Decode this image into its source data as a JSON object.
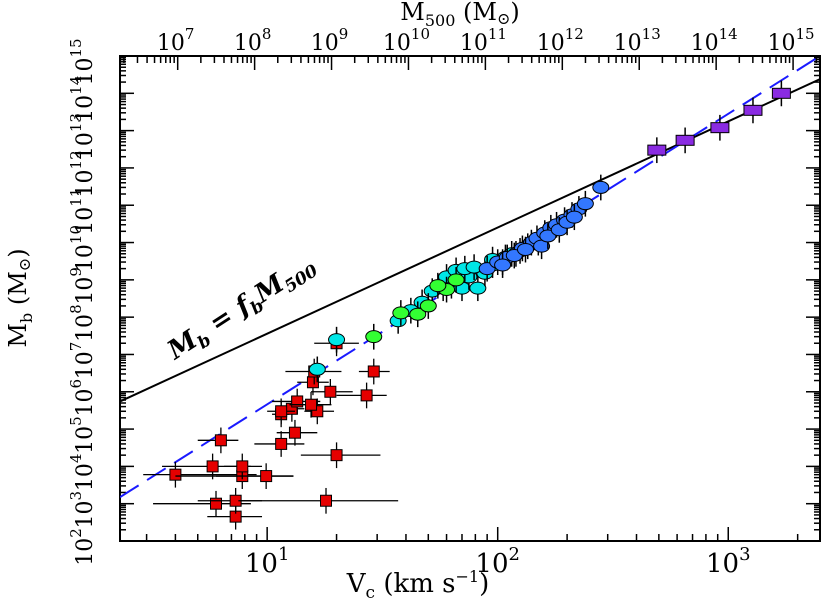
{
  "chart_data": {
    "type": "scatter",
    "title": "",
    "xlabel": "V c  (km  s⁻¹)",
    "ylabel": "M b (M⊙)",
    "top_xlabel": "M500  (M⊙)",
    "xscale": "log",
    "yscale": "log",
    "xlim": [
      2.3,
      2500
    ],
    "ylim": [
      100,
      1000000000000000.0
    ],
    "top_axis_range_log10": [
      6.25,
      15.35
    ],
    "x_ticks": [
      {
        "value": 10,
        "label": "10",
        "exp": "1"
      },
      {
        "value": 100,
        "label": "10",
        "exp": "2"
      },
      {
        "value": 1000,
        "label": "10",
        "exp": "3"
      }
    ],
    "y_ticks": [
      {
        "value": 100.0,
        "label": "10",
        "exp": "2"
      },
      {
        "value": 1000.0,
        "label": "10",
        "exp": "3"
      },
      {
        "value": 10000.0,
        "label": "10",
        "exp": "4"
      },
      {
        "value": 100000.0,
        "label": "10",
        "exp": "5"
      },
      {
        "value": 1000000.0,
        "label": "10",
        "exp": "6"
      },
      {
        "value": 10000000.0,
        "label": "10",
        "exp": "7"
      },
      {
        "value": 100000000.0,
        "label": "10",
        "exp": "8"
      },
      {
        "value": 1000000000.0,
        "label": "10",
        "exp": "9"
      },
      {
        "value": 10000000000.0,
        "label": "10",
        "exp": "10"
      },
      {
        "value": 100000000000.0,
        "label": "10",
        "exp": "11"
      },
      {
        "value": 1000000000000.0,
        "label": "10",
        "exp": "12"
      },
      {
        "value": 10000000000000.0,
        "label": "10",
        "exp": "13"
      },
      {
        "value": 100000000000000.0,
        "label": "10",
        "exp": "14"
      },
      {
        "value": 1000000000000000.0,
        "label": "10",
        "exp": "15"
      }
    ],
    "top_ticks": [
      {
        "value": 7,
        "label": "10",
        "exp": "7"
      },
      {
        "value": 8,
        "label": "10",
        "exp": "8"
      },
      {
        "value": 9,
        "label": "10",
        "exp": "9"
      },
      {
        "value": 10,
        "label": "10",
        "exp": "10"
      },
      {
        "value": 11,
        "label": "10",
        "exp": "11"
      },
      {
        "value": 12,
        "label": "10",
        "exp": "12"
      },
      {
        "value": 13,
        "label": "10",
        "exp": "13"
      },
      {
        "value": 14,
        "label": "10",
        "exp": "14"
      },
      {
        "value": 15,
        "label": "10",
        "exp": "15"
      }
    ],
    "annotation": "Mb = fb M500",
    "lines": [
      {
        "name": "Mb = fb M500",
        "style": "solid",
        "color": "#000000",
        "points": [
          [
            2.3,
            550000.0
          ],
          [
            2500,
            240000000000000.0
          ]
        ]
      },
      {
        "name": "",
        "style": "dashed",
        "color": "#1a1aff",
        "points": [
          [
            2.3,
            1500.0
          ],
          [
            2500,
            1000000000000000.0
          ]
        ]
      }
    ],
    "series": [
      {
        "name": "",
        "marker": "square",
        "color": "#e60000",
        "points": [
          [
            7.3,
            450.0,
            5.5,
            9.5
          ],
          [
            6.0,
            1000.0,
            3.2,
            8.5
          ],
          [
            7.3,
            1200.0,
            5.0,
            9.5
          ],
          [
            18.0,
            1200.0,
            7.5,
            37.0
          ],
          [
            4.0,
            6000.0,
            2.9,
            9.0
          ],
          [
            7.8,
            5500.0,
            4.0,
            13.0
          ],
          [
            9.9,
            5500.0,
            6.0,
            13.0
          ],
          [
            5.8,
            10000.0,
            3.5,
            8.5
          ],
          [
            7.8,
            10000.0,
            6.5,
            9.5
          ],
          [
            20.0,
            20000.0,
            14.0,
            31.0
          ],
          [
            6.3,
            50000.0,
            5.0,
            7.5
          ],
          [
            11.5,
            40000.0,
            8.8,
            14.5
          ],
          [
            13.2,
            80000.0,
            11.0,
            16.5
          ],
          [
            11.5,
            250000.0,
            10.5,
            12.5
          ],
          [
            12.8,
            350000.0,
            11.5,
            14.5
          ],
          [
            16.5,
            300000.0,
            14.5,
            19.5
          ],
          [
            11.5,
            300000.0,
            10.0,
            13.2
          ],
          [
            13.5,
            550000.0,
            10.5,
            17.0
          ],
          [
            15.5,
            450000.0,
            12.5,
            19.0
          ],
          [
            27.0,
            800000.0,
            20.0,
            33.0
          ],
          [
            18.8,
            1000000.0,
            15.5,
            23.5
          ],
          [
            15.8,
            1800000.0,
            13.5,
            18.5
          ],
          [
            16.0,
            3500000.0,
            12.0,
            21.0
          ],
          [
            29.0,
            3500000.0,
            25.0,
            34.0
          ],
          [
            20.0,
            20000000.0,
            16.0,
            25.0
          ]
        ]
      },
      {
        "name": "",
        "marker": "circle",
        "color": "#00e6e6",
        "points": [
          [
            20.0,
            25000000.0
          ],
          [
            16.5,
            4000000.0
          ],
          [
            37.0,
            80000000.0
          ],
          [
            42.0,
            150000000.0
          ],
          [
            47.0,
            250000000.0
          ],
          [
            52.0,
            500000000.0
          ],
          [
            58.0,
            600000000.0
          ],
          [
            63.0,
            700000000.0
          ],
          [
            70.0,
            600000000.0
          ],
          [
            82.0,
            600000000.0
          ],
          [
            75.0,
            1200000000.0
          ],
          [
            88.0,
            1500000000.0
          ],
          [
            60.0,
            1200000000.0
          ],
          [
            66.0,
            1800000000.0
          ],
          [
            72.0,
            2000000000.0
          ],
          [
            79.0,
            2200000000.0
          ],
          [
            95.0,
            2500000000.0
          ],
          [
            105.0,
            3000000000.0
          ],
          [
            115.0,
            5000000000.0
          ],
          [
            125.0,
            6000000000.0
          ],
          [
            135.0,
            8000000000.0
          ],
          [
            150.0,
            10000000000.0
          ],
          [
            108.0,
            4000000000.0
          ],
          [
            95.0,
            3500000000.0
          ]
        ]
      },
      {
        "name": "",
        "marker": "circle",
        "color": "#33ff33",
        "points": [
          [
            29.0,
            30000000.0
          ],
          [
            38.0,
            130000000.0
          ],
          [
            45.0,
            120000000.0
          ],
          [
            50.0,
            200000000.0
          ],
          [
            60.0,
            550000000.0
          ],
          [
            66.0,
            1000000000.0
          ],
          [
            55.0,
            700000000.0
          ]
        ]
      },
      {
        "name": "",
        "marker": "circle",
        "color": "#3377ff",
        "points": [
          [
            90.0,
            2000000000.0
          ],
          [
            100.0,
            3000000000.0
          ],
          [
            110.0,
            4000000000.0
          ],
          [
            120.0,
            5000000000.0
          ],
          [
            128.0,
            7000000000.0
          ],
          [
            140.0,
            10000000000.0
          ],
          [
            148.0,
            13000000000.0
          ],
          [
            160.0,
            18000000000.0
          ],
          [
            170.0,
            25000000000.0
          ],
          [
            180.0,
            30000000000.0
          ],
          [
            195.0,
            40000000000.0
          ],
          [
            210.0,
            55000000000.0
          ],
          [
            225.0,
            80000000000.0
          ],
          [
            240.0,
            110000000000.0
          ],
          [
            280.0,
            300000000000.0
          ],
          [
            155.0,
            8000000000.0
          ],
          [
            165.0,
            15000000000.0
          ],
          [
            185.0,
            22000000000.0
          ],
          [
            200.0,
            35000000000.0
          ],
          [
            215.0,
            48000000000.0
          ],
          [
            105.0,
            2500000000.0
          ],
          [
            118.0,
            4500000000.0
          ],
          [
            132.0,
            6500000000.0
          ]
        ]
      },
      {
        "name": "",
        "marker": "square",
        "color": "#8a2be2",
        "points": [
          [
            490.0,
            3000000000000.0
          ],
          [
            650.0,
            5500000000000.0
          ],
          [
            920.0,
            12000000000000.0
          ],
          [
            1280.0,
            35000000000000.0
          ],
          [
            1700.0,
            100000000000000.0
          ]
        ]
      }
    ],
    "grid": false,
    "legend": "none"
  }
}
